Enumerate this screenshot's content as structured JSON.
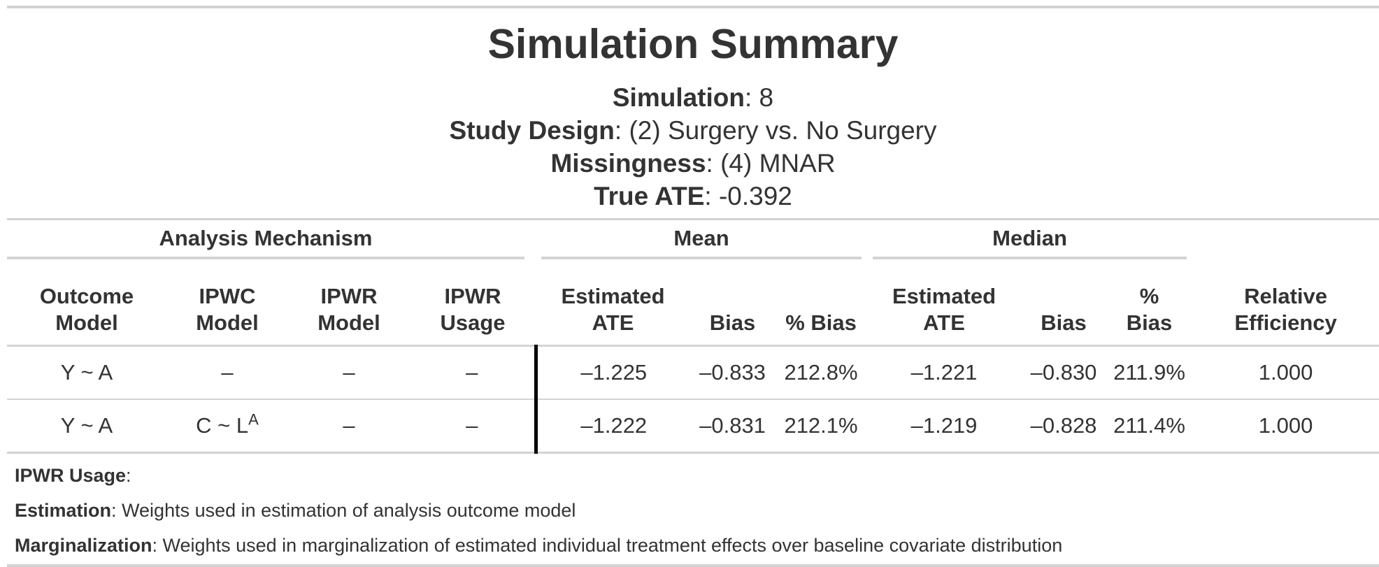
{
  "title": "Simulation Summary",
  "subtitle": [
    {
      "label": "Simulation",
      "value": "8"
    },
    {
      "label": "Study Design",
      "value": "(2) Surgery vs. No Surgery"
    },
    {
      "label": "Missingness",
      "value": "(4) MNAR"
    },
    {
      "label": "True ATE",
      "value": "-0.392"
    }
  ],
  "spanners": {
    "analysis": "Analysis Mechanism",
    "mean": "Mean",
    "median": "Median"
  },
  "columns": {
    "outcome_model": [
      "Outcome",
      "Model"
    ],
    "ipwc_model": [
      "IPWC",
      "Model"
    ],
    "ipwr_model": [
      "IPWR",
      "Model"
    ],
    "ipwr_usage": [
      "IPWR",
      "Usage"
    ],
    "mean_est": [
      "Estimated",
      "ATE"
    ],
    "mean_bias": [
      "Bias"
    ],
    "mean_pct": [
      "% Bias"
    ],
    "median_est": [
      "Estimated",
      "ATE"
    ],
    "median_bias": [
      "Bias"
    ],
    "median_pct": [
      "%",
      "Bias"
    ],
    "rel_eff": [
      "Relative",
      "Efficiency"
    ]
  },
  "rows": [
    {
      "outcome_model": "Y ~ A",
      "ipwc_model": "–",
      "ipwc_sup": "",
      "ipwr_model": "–",
      "ipwr_usage": "–",
      "mean_est": "–1.225",
      "mean_bias": "–0.833",
      "mean_pct": "212.8%",
      "median_est": "–1.221",
      "median_bias": "–0.830",
      "median_pct": "211.9%",
      "rel_eff": "1.000"
    },
    {
      "outcome_model": "Y ~ A",
      "ipwc_model": "C ~ L",
      "ipwc_sup": "A",
      "ipwr_model": "–",
      "ipwr_usage": "–",
      "mean_est": "–1.222",
      "mean_bias": "–0.831",
      "mean_pct": "212.1%",
      "median_est": "–1.219",
      "median_bias": "–0.828",
      "median_pct": "211.4%",
      "rel_eff": "1.000"
    }
  ],
  "footnotes": {
    "heading": "IPWR Usage",
    "items": [
      {
        "label": "Estimation",
        "text": "Weights used in estimation of analysis outcome model"
      },
      {
        "label": "Marginalization",
        "text": "Weights used in marginalization of estimated individual treatment effects over baseline covariate distribution"
      }
    ]
  }
}
